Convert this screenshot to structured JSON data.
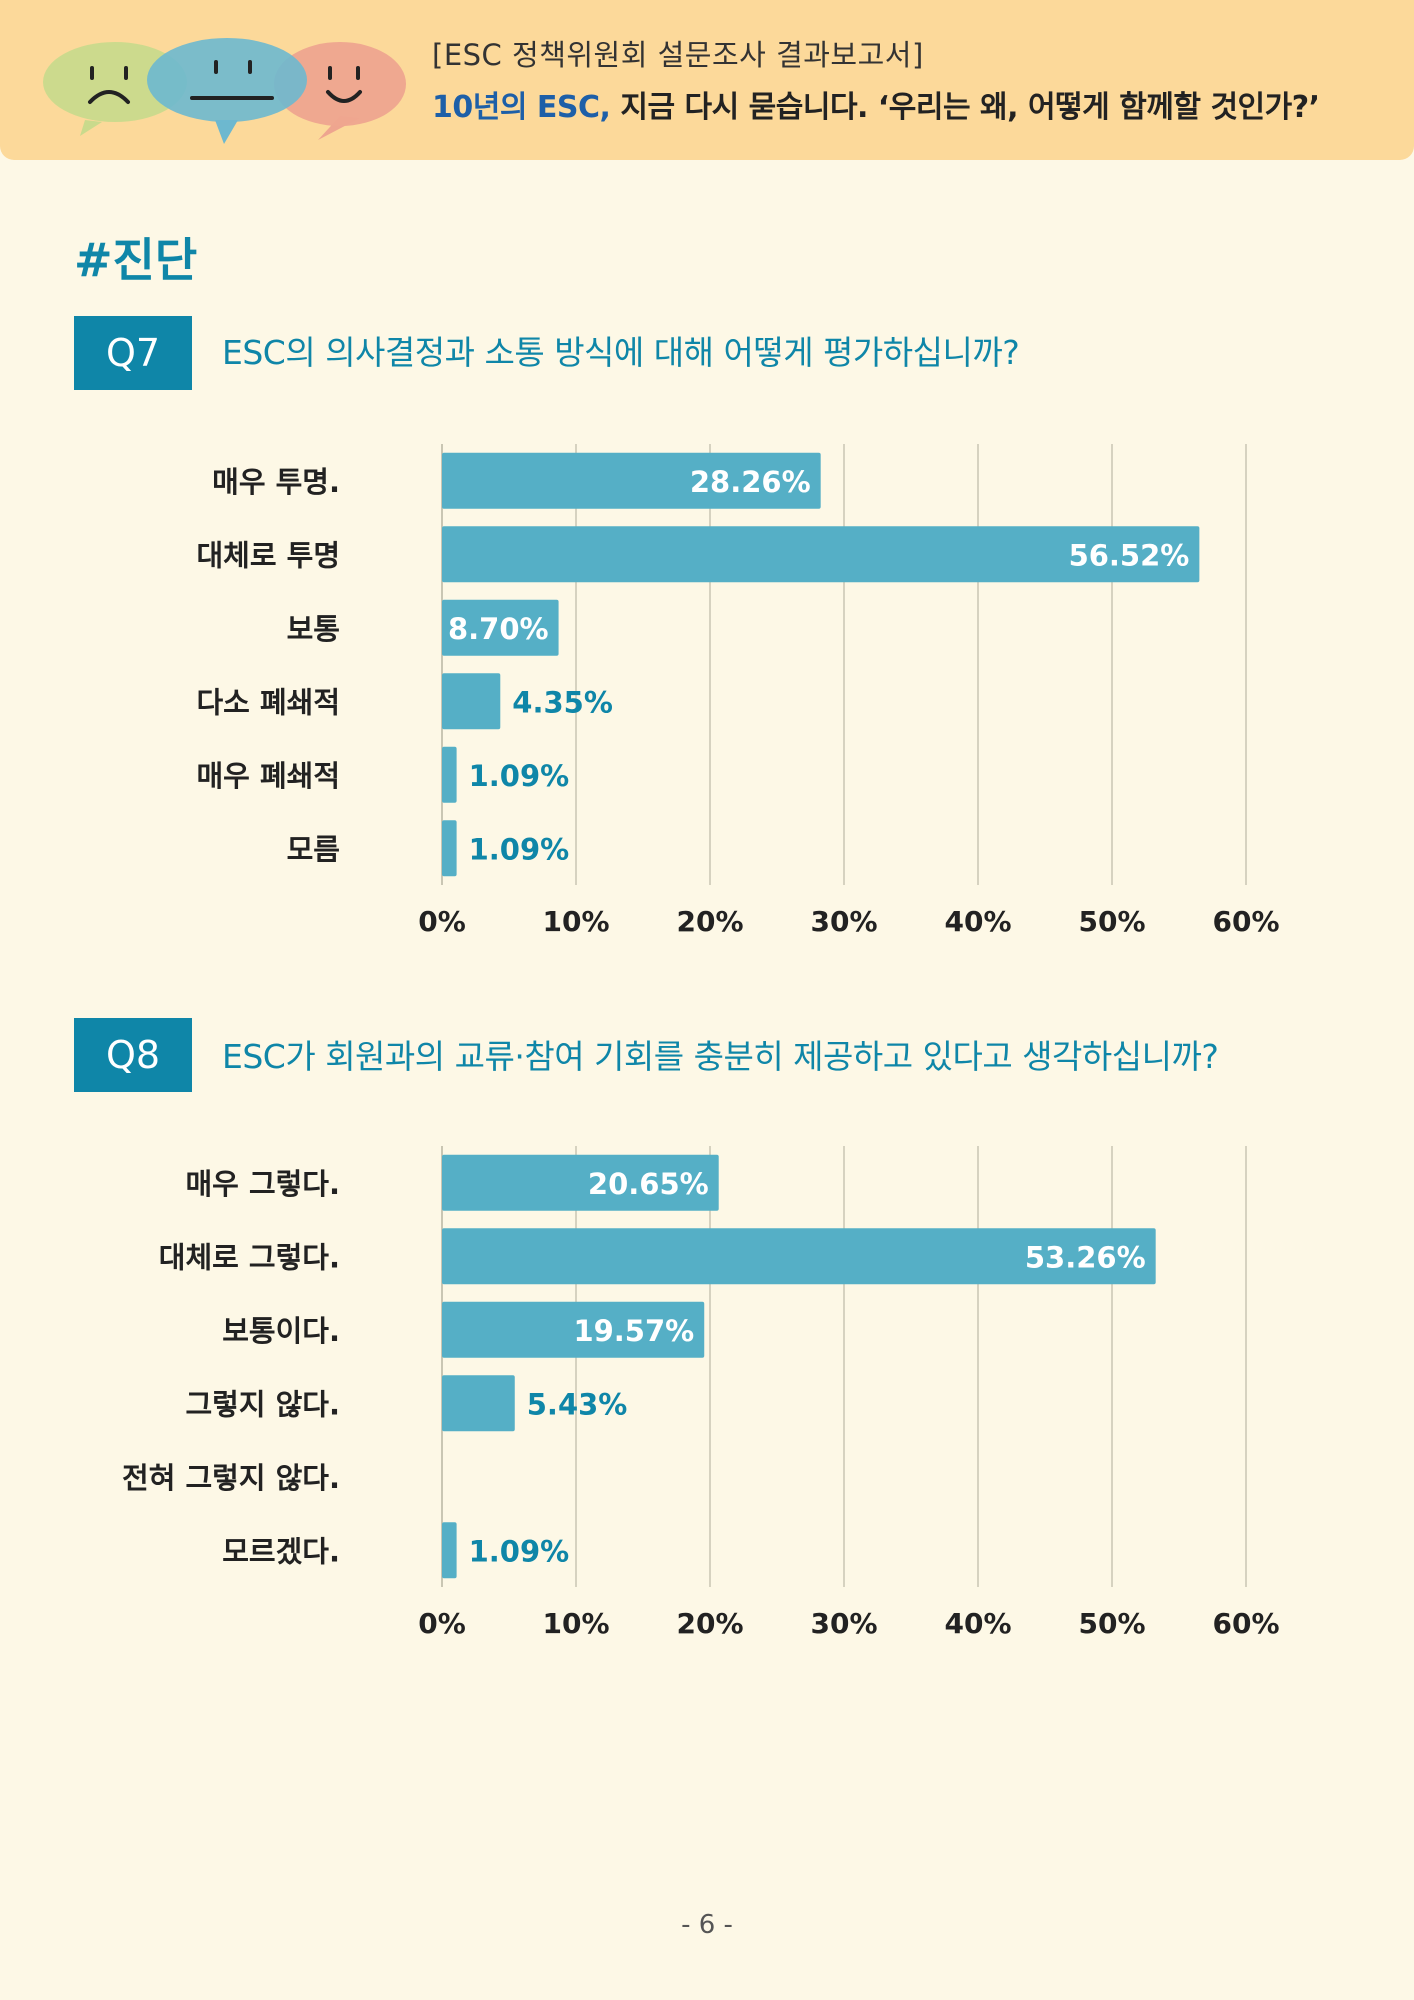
{
  "header": {
    "subtitle": "[ESC 정책위원회 설문조사 결과보고서]",
    "title_highlight": "10년의 ESC,",
    "title_rest": " 지금 다시 묻습니다. ‘우리는 왜, 어떻게 함께할 것인가?’"
  },
  "section": {
    "title": "#진단"
  },
  "questions": [
    {
      "badge": "Q7",
      "text": "ESC의 의사결정과 소통 방식에 대해 어떻게 평가하십니까?"
    },
    {
      "badge": "Q8",
      "text": "ESC가 회원과의 교류·참여 기회를 충분히 제공하고 있다고 생각하십니까?"
    }
  ],
  "chart_data": [
    {
      "type": "bar",
      "orientation": "horizontal",
      "title": "ESC의 의사결정과 소통 방식에 대해 어떻게 평가하십니까?",
      "categories": [
        "매우 투명.",
        "대체로 투명",
        "보통",
        "다소 폐쇄적",
        "매우 폐쇄적",
        "모름"
      ],
      "values": [
        28.26,
        56.52,
        8.7,
        4.35,
        1.09,
        1.09
      ],
      "value_labels": [
        "28.26%",
        "56.52%",
        "8.70%",
        "4.35%",
        "1.09%",
        "1.09%"
      ],
      "xlim": [
        0,
        60
      ],
      "ticks": [
        "0%",
        "10%",
        "20%",
        "30%",
        "40%",
        "50%",
        "60%"
      ],
      "grid": true
    },
    {
      "type": "bar",
      "orientation": "horizontal",
      "title": "ESC가 회원과의 교류·참여 기회를 충분히 제공하고 있다고 생각하십니까?",
      "categories": [
        "매우 그렇다.",
        "대체로 그렇다.",
        "보통이다.",
        "그렇지 않다.",
        "전혀 그렇지 않다.",
        "모르겠다."
      ],
      "values": [
        20.65,
        53.26,
        19.57,
        5.43,
        0,
        1.09
      ],
      "value_labels": [
        "20.65%",
        "53.26%",
        "19.57%",
        "5.43%",
        "",
        "1.09%"
      ],
      "xlim": [
        0,
        60
      ],
      "ticks": [
        "0%",
        "10%",
        "20%",
        "30%",
        "40%",
        "50%",
        "60%"
      ],
      "grid": true
    }
  ],
  "colors": {
    "bar": "#55afc6",
    "accent": "#0f86a8",
    "grid": "#c9c6b3",
    "background": "#fdf8e6",
    "header_bg": "#fcd99a"
  },
  "footer": {
    "page": "- 6 -"
  }
}
